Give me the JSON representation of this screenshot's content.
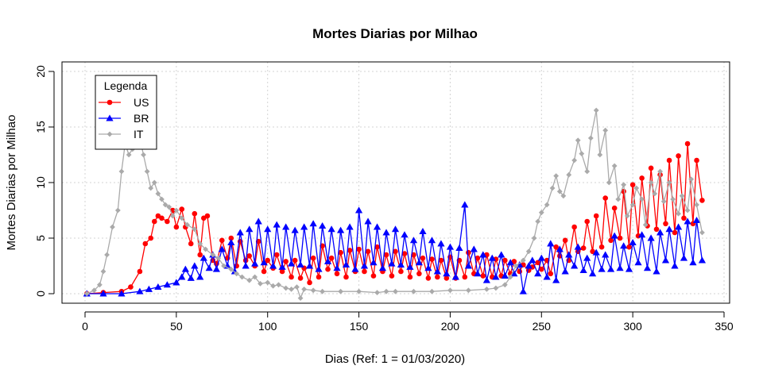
{
  "chart_data": {
    "type": "line",
    "title": "Mortes Diarias por Milhao",
    "xlabel": "Dias (Ref: 1 = 01/03/2020)",
    "ylabel": "Mortes Diarias por Milhao",
    "xlim": [
      1,
      338
    ],
    "ylim": [
      0,
      20
    ],
    "xticks": [
      0,
      50,
      100,
      150,
      200,
      250,
      300,
      350
    ],
    "yticks": [
      0,
      5,
      10,
      15,
      20
    ],
    "grid": true,
    "legend": {
      "title": "Legenda",
      "position": "top-left"
    },
    "series": [
      {
        "name": "US",
        "color": "#ff0000",
        "marker": "circle",
        "x": [
          1,
          10,
          20,
          25,
          30,
          33,
          36,
          38,
          40,
          42,
          45,
          48,
          50,
          53,
          55,
          58,
          60,
          63,
          65,
          67,
          70,
          72,
          75,
          78,
          80,
          83,
          85,
          88,
          90,
          93,
          95,
          98,
          100,
          103,
          105,
          108,
          110,
          113,
          115,
          118,
          120,
          123,
          125,
          128,
          130,
          133,
          135,
          138,
          140,
          143,
          145,
          148,
          150,
          153,
          155,
          158,
          160,
          163,
          165,
          168,
          170,
          173,
          175,
          178,
          180,
          183,
          185,
          188,
          190,
          193,
          195,
          198,
          200,
          203,
          205,
          208,
          210,
          213,
          215,
          218,
          220,
          223,
          225,
          228,
          230,
          233,
          235,
          238,
          240,
          243,
          245,
          248,
          250,
          253,
          255,
          258,
          260,
          263,
          265,
          268,
          270,
          273,
          275,
          278,
          280,
          283,
          285,
          288,
          290,
          293,
          295,
          298,
          300,
          303,
          305,
          308,
          310,
          313,
          315,
          318,
          320,
          323,
          325,
          328,
          330,
          333,
          335,
          338
        ],
        "values": [
          0,
          0.1,
          0.2,
          0.6,
          2,
          4.5,
          5,
          6.5,
          7,
          6.8,
          6.5,
          7.5,
          6,
          7.6,
          6,
          4.5,
          7.2,
          3.5,
          6.8,
          7,
          3,
          2.7,
          4.8,
          3.2,
          5,
          2.5,
          4.7,
          3,
          3.4,
          2.5,
          4.7,
          2,
          3,
          2.3,
          3.5,
          2,
          2.9,
          1.5,
          3,
          1.4,
          2.3,
          1,
          3.2,
          1.5,
          4.3,
          2.2,
          3.2,
          1.8,
          3.7,
          1.5,
          3.9,
          2,
          4,
          2,
          3.8,
          1.6,
          4.2,
          2,
          3.5,
          1.6,
          3.8,
          2,
          3.6,
          1.5,
          3.5,
          1.8,
          3.2,
          1.4,
          3.1,
          1.5,
          3,
          1.4,
          3.3,
          1.4,
          3,
          1.5,
          3.7,
          1.8,
          3.2,
          1.6,
          3.5,
          1.5,
          3.1,
          1.6,
          3,
          1.8,
          2.9,
          2,
          2.6,
          2.1,
          2.4,
          2.8,
          2.2,
          3,
          1.8,
          4.2,
          3.4,
          4.8,
          3,
          6,
          3.8,
          4.1,
          6.5,
          3.8,
          7,
          4.2,
          8.6,
          4.8,
          7.7,
          5,
          9.2,
          4.2,
          9.8,
          5.2,
          10.4,
          6.1,
          11.3,
          5.8,
          10.7,
          6.3,
          12,
          5.5,
          12.4,
          6.8,
          13.5,
          6.3,
          12,
          8.4
        ]
      },
      {
        "name": "BR",
        "color": "#0000ff",
        "marker": "triangle",
        "x": [
          1,
          10,
          20,
          30,
          35,
          40,
          45,
          50,
          53,
          55,
          58,
          60,
          63,
          65,
          68,
          70,
          72,
          75,
          78,
          80,
          82,
          85,
          88,
          90,
          93,
          95,
          98,
          100,
          103,
          105,
          108,
          110,
          113,
          115,
          118,
          120,
          123,
          125,
          128,
          130,
          133,
          135,
          138,
          140,
          143,
          145,
          148,
          150,
          153,
          155,
          158,
          160,
          163,
          165,
          168,
          170,
          173,
          175,
          178,
          180,
          183,
          185,
          188,
          190,
          193,
          195,
          198,
          200,
          203,
          205,
          208,
          210,
          213,
          215,
          218,
          220,
          223,
          225,
          228,
          230,
          233,
          235,
          238,
          240,
          243,
          245,
          248,
          250,
          253,
          255,
          258,
          260,
          263,
          265,
          268,
          270,
          273,
          275,
          278,
          280,
          283,
          285,
          288,
          290,
          293,
          295,
          298,
          300,
          303,
          305,
          308,
          310,
          313,
          315,
          318,
          320,
          323,
          325,
          328,
          330,
          333,
          335,
          338
        ],
        "values": [
          0,
          0,
          0,
          0.2,
          0.4,
          0.6,
          0.8,
          1,
          1.5,
          2.2,
          1.4,
          2.5,
          1.5,
          3.2,
          2.3,
          3.5,
          2.2,
          4,
          2.5,
          4.6,
          2,
          5.5,
          2.5,
          5.8,
          2.7,
          6.5,
          2.8,
          5.8,
          2.5,
          6.2,
          2.4,
          6,
          2.7,
          5.7,
          2.6,
          6,
          2.5,
          6.3,
          2.2,
          6.1,
          2.9,
          5.8,
          2.3,
          5.7,
          2.6,
          6,
          2.2,
          7.5,
          2.5,
          6.5,
          2.8,
          6,
          2.3,
          5.5,
          2.7,
          5.8,
          2.6,
          5.3,
          2.4,
          4.8,
          2.8,
          5.6,
          2.3,
          4.8,
          2,
          4.5,
          1.8,
          4.2,
          1.5,
          4.1,
          8,
          2.5,
          4,
          1.8,
          3.5,
          1.2,
          3.2,
          1.5,
          3.5,
          1.6,
          2.8,
          1.8,
          2.6,
          0.2,
          2.5,
          3,
          1.8,
          3.2,
          1.5,
          4.5,
          1.2,
          4,
          2,
          3.5,
          2.5,
          4.2,
          2.1,
          3.2,
          1.8,
          3.7,
          2.2,
          3.5,
          2.2,
          5.2,
          2.3,
          4.3,
          2.2,
          4.6,
          2.8,
          5.3,
          2.3,
          5,
          2,
          5.5,
          3,
          5.8,
          2.5,
          6,
          3.2,
          6.5,
          2.8,
          6.6,
          3
        ]
      },
      {
        "name": "IT",
        "color": "#aaaaaa",
        "marker": "diamond",
        "x": [
          1,
          5,
          8,
          10,
          12,
          15,
          18,
          20,
          22,
          24,
          26,
          28,
          30,
          32,
          34,
          36,
          38,
          40,
          42,
          44,
          46,
          48,
          50,
          53,
          56,
          60,
          63,
          66,
          70,
          73,
          76,
          80,
          83,
          86,
          90,
          93,
          96,
          100,
          103,
          106,
          110,
          113,
          116,
          118,
          120,
          125,
          130,
          140,
          150,
          160,
          165,
          170,
          180,
          190,
          200,
          210,
          220,
          225,
          230,
          233,
          236,
          240,
          243,
          246,
          248,
          250,
          253,
          256,
          258,
          260,
          262,
          265,
          268,
          270,
          272,
          275,
          277,
          280,
          282,
          285,
          287,
          290,
          292,
          295,
          297,
          300,
          302,
          305,
          307,
          310,
          312,
          315,
          317,
          320,
          322,
          325,
          327,
          330,
          332,
          335,
          338
        ],
        "values": [
          0,
          0.3,
          0.8,
          2,
          3.5,
          6,
          7.5,
          11,
          13.5,
          12.5,
          13,
          15,
          14,
          12.5,
          11,
          9.5,
          10,
          9,
          8.5,
          8,
          7.8,
          7,
          7.5,
          6.8,
          6.2,
          5.8,
          4.5,
          4,
          3.5,
          3.2,
          2.5,
          2.2,
          1.8,
          1.5,
          1.2,
          1.5,
          0.9,
          1,
          0.7,
          0.8,
          0.5,
          0.4,
          0.6,
          -0.4,
          0.4,
          0.3,
          0.2,
          0.2,
          0.2,
          0.1,
          0.2,
          0.2,
          0.2,
          0.2,
          0.3,
          0.3,
          0.4,
          0.5,
          0.8,
          1.5,
          2.5,
          3,
          3.8,
          5,
          6.5,
          7.3,
          8,
          9.5,
          10.6,
          9.2,
          8.8,
          10.7,
          12,
          13.8,
          12.6,
          11,
          14,
          16.5,
          12.5,
          14.7,
          10,
          11.5,
          8.5,
          9.8,
          7,
          8,
          9.5,
          8.5,
          6.2,
          10,
          9,
          11,
          8.3,
          10,
          8.5,
          7.2,
          8.8,
          7.5,
          10.3,
          8,
          5.5
        ]
      }
    ]
  }
}
